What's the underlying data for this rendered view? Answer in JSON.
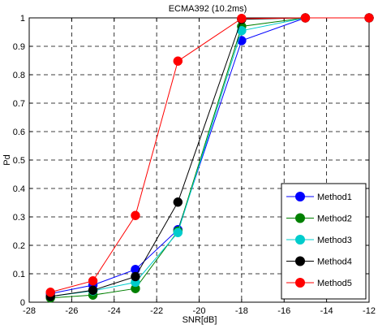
{
  "chart_data": {
    "type": "line",
    "title": "ECMA392 (10.2ms)",
    "xlabel": "SNR[dB]",
    "ylabel": "Pd",
    "xlim": [
      -28,
      -12
    ],
    "ylim": [
      0,
      1
    ],
    "xticks": [
      -28,
      -26,
      -24,
      -22,
      -20,
      -18,
      -16,
      -14,
      -12
    ],
    "yticks": [
      0,
      0.1,
      0.2,
      0.3,
      0.4,
      0.5,
      0.6,
      0.7,
      0.8,
      0.9,
      1
    ],
    "xtick_labels": [
      "-28",
      "-26",
      "-24",
      "-22",
      "-20",
      "-18",
      "-16",
      "-14",
      "-12"
    ],
    "ytick_labels": [
      "0",
      "0.1",
      "0.2",
      "0.3",
      "0.4",
      "0.5",
      "0.6",
      "0.7",
      "0.8",
      "0.9",
      "1"
    ],
    "grid": true,
    "legend_position": "lower-right",
    "x": [
      -27,
      -25,
      -23,
      -21,
      -18,
      -15,
      -12
    ],
    "series": [
      {
        "name": "Method1",
        "color": "#0000ff",
        "values": [
          0.03,
          0.06,
          0.115,
          0.255,
          0.92,
          1.0,
          1.0
        ]
      },
      {
        "name": "Method2",
        "color": "#008000",
        "values": [
          0.015,
          0.025,
          0.048,
          0.25,
          0.97,
          1.0,
          1.0
        ]
      },
      {
        "name": "Method3",
        "color": "#00cccc",
        "values": [
          0.02,
          0.04,
          0.07,
          0.245,
          0.955,
          1.0,
          1.0
        ]
      },
      {
        "name": "Method4",
        "color": "#000000",
        "values": [
          0.02,
          0.042,
          0.09,
          0.352,
          0.995,
          1.0,
          1.0
        ]
      },
      {
        "name": "Method5",
        "color": "#ff0000",
        "values": [
          0.035,
          0.075,
          0.305,
          0.848,
          0.998,
          1.0,
          1.0
        ]
      }
    ]
  }
}
